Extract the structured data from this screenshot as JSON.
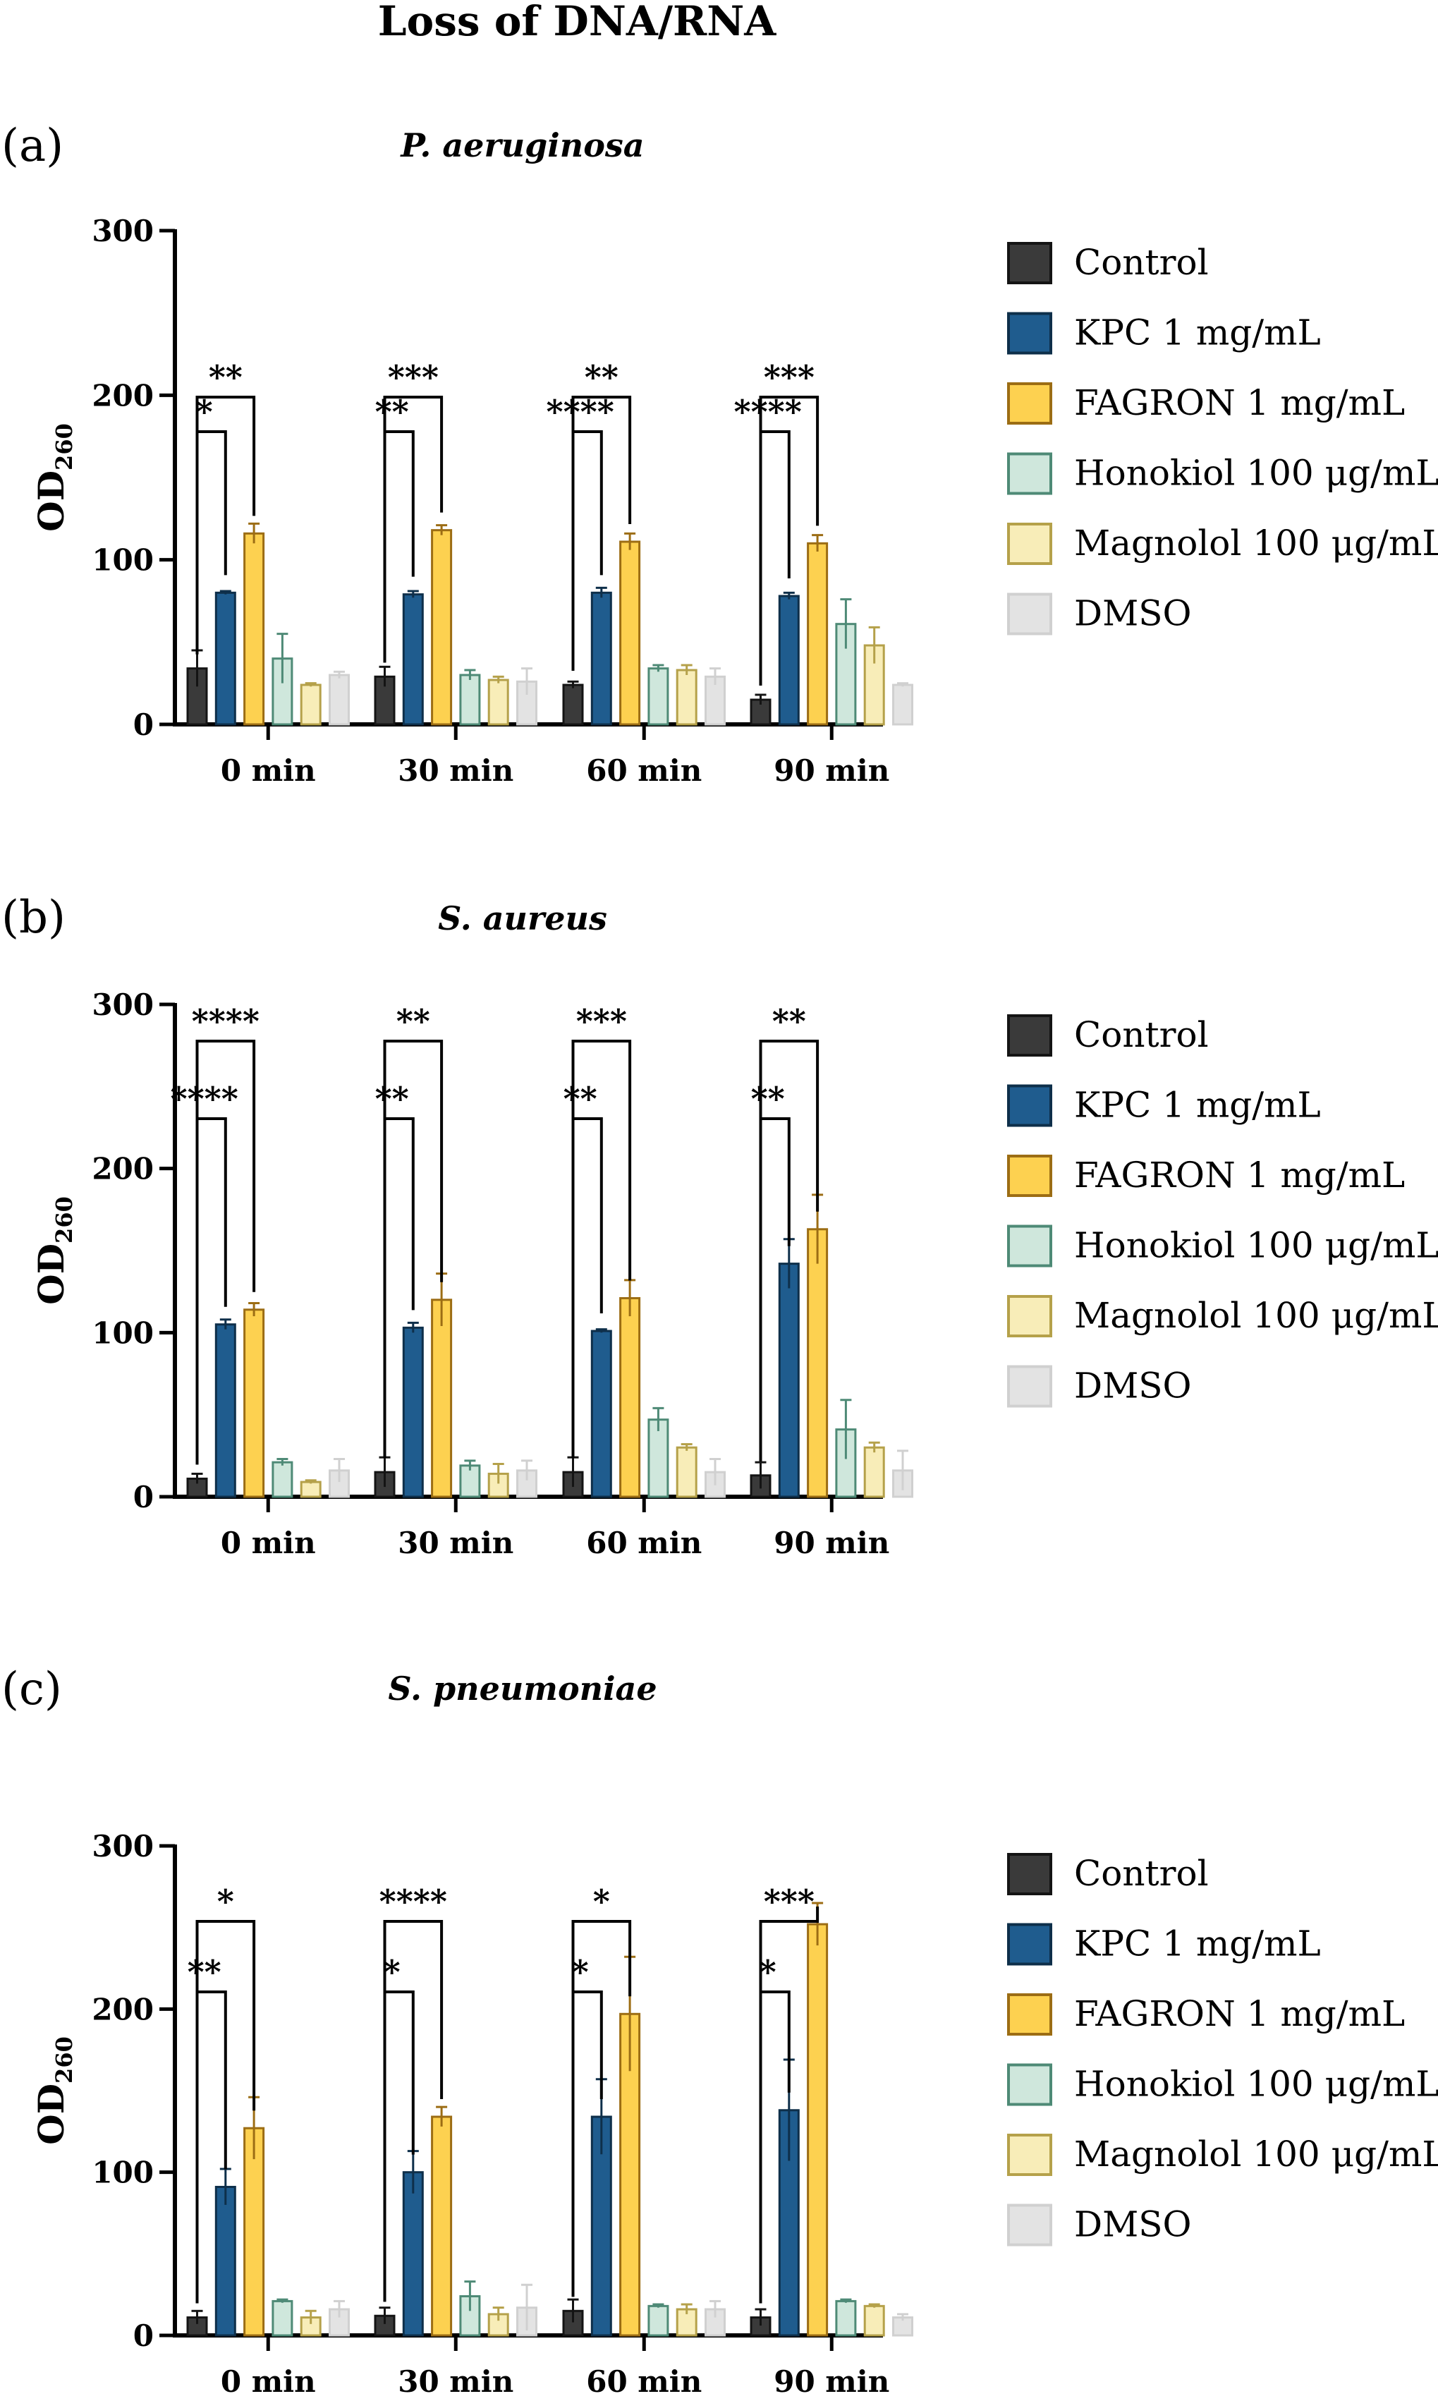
{
  "figure_title": "Loss of DNA/RNA",
  "legend": [
    {
      "label": "Control",
      "fill": "#3a3a3a",
      "stroke": "#141414"
    },
    {
      "label": "KPC 1 mg/mL",
      "fill": "#1f5c8e",
      "stroke": "#0e2f4a"
    },
    {
      "label": "FAGRON 1 mg/mL",
      "fill": "#fdd150",
      "stroke": "#9c6d14"
    },
    {
      "label": "Honokiol 100 μg/mL",
      "fill": "#cfe7dc",
      "stroke": "#4e8a76"
    },
    {
      "label": "Magnolol 100 μg/mL",
      "fill": "#f8edb8",
      "stroke": "#b5a14a"
    },
    {
      "label": "DMSO",
      "fill": "#e3e3e3",
      "stroke": "#d0d0d0"
    }
  ],
  "chart_data": [
    {
      "type": "bar",
      "panel_label": "(a)",
      "title": "P. aeruginosa",
      "ylabel": "OD",
      "ylabel_sub": "260",
      "ylim": [
        0,
        300
      ],
      "yticks": [
        0,
        100,
        200,
        300
      ],
      "categories": [
        "0 min",
        "30 min",
        "60 min",
        "90 min"
      ],
      "series": [
        {
          "name": "Control",
          "values": [
            34,
            29,
            24,
            15
          ],
          "errors": [
            11,
            6,
            2,
            3
          ]
        },
        {
          "name": "KPC 1 mg/mL",
          "values": [
            80,
            79,
            80,
            78
          ],
          "errors": [
            1,
            2,
            3,
            2
          ]
        },
        {
          "name": "FAGRON 1 mg/mL",
          "values": [
            116,
            118,
            111,
            110
          ],
          "errors": [
            6,
            3,
            5,
            5
          ]
        },
        {
          "name": "Honokiol 100 μg/mL",
          "values": [
            40,
            30,
            34,
            61
          ],
          "errors": [
            15,
            3,
            2,
            15
          ]
        },
        {
          "name": "Magnolol 100 μg/mL",
          "values": [
            24,
            27,
            33,
            48
          ],
          "errors": [
            1,
            2,
            3,
            11
          ]
        },
        {
          "name": "DMSO",
          "values": [
            30,
            26,
            29,
            24
          ],
          "errors": [
            2,
            8,
            5,
            1
          ]
        }
      ],
      "significance_near": [
        "*",
        "**",
        "****",
        "****"
      ],
      "significance_far": [
        "**",
        "***",
        "**",
        "***"
      ]
    },
    {
      "type": "bar",
      "panel_label": "(b)",
      "title": "S. aureus",
      "ylabel": "OD",
      "ylabel_sub": "260",
      "ylim": [
        0,
        300
      ],
      "yticks": [
        0,
        100,
        200,
        300
      ],
      "categories": [
        "0 min",
        "30 min",
        "60 min",
        "90 min"
      ],
      "series": [
        {
          "name": "Control",
          "values": [
            11,
            15,
            15,
            13
          ],
          "errors": [
            3,
            9,
            9,
            8
          ]
        },
        {
          "name": "KPC 1 mg/mL",
          "values": [
            105,
            103,
            101,
            142
          ],
          "errors": [
            3,
            3,
            1,
            15
          ]
        },
        {
          "name": "FAGRON 1 mg/mL",
          "values": [
            114,
            120,
            121,
            163
          ],
          "errors": [
            4,
            16,
            11,
            21
          ]
        },
        {
          "name": "Honokiol 100 μg/mL",
          "values": [
            21,
            19,
            47,
            41
          ],
          "errors": [
            2,
            3,
            7,
            18
          ]
        },
        {
          "name": "Magnolol 100 μg/mL",
          "values": [
            9,
            14,
            30,
            30
          ],
          "errors": [
            1,
            6,
            2,
            3
          ]
        },
        {
          "name": "DMSO",
          "values": [
            16,
            16,
            15,
            16
          ],
          "errors": [
            7,
            6,
            8,
            12
          ]
        }
      ],
      "significance_near": [
        "****",
        "**",
        "**",
        "**"
      ],
      "significance_far": [
        "****",
        "**",
        "***",
        "**"
      ]
    },
    {
      "type": "bar",
      "panel_label": "(c)",
      "title": "S. pneumoniae",
      "ylabel": "OD",
      "ylabel_sub": "260",
      "ylim": [
        0,
        300
      ],
      "yticks": [
        0,
        100,
        200,
        300
      ],
      "categories": [
        "0 min",
        "30 min",
        "60 min",
        "90 min"
      ],
      "series": [
        {
          "name": "Control",
          "values": [
            11,
            12,
            15,
            11
          ],
          "errors": [
            4,
            5,
            7,
            5
          ]
        },
        {
          "name": "KPC 1 mg/mL",
          "values": [
            91,
            100,
            134,
            138
          ],
          "errors": [
            11,
            13,
            23,
            31
          ]
        },
        {
          "name": "FAGRON 1 mg/mL",
          "values": [
            127,
            134,
            197,
            252
          ],
          "errors": [
            19,
            6,
            35,
            13
          ]
        },
        {
          "name": "Honokiol 100 μg/mL",
          "values": [
            21,
            24,
            18,
            21
          ],
          "errors": [
            1,
            9,
            1,
            1
          ]
        },
        {
          "name": "Magnolol 100 μg/mL",
          "values": [
            11,
            13,
            16,
            18
          ],
          "errors": [
            4,
            4,
            3,
            1
          ]
        },
        {
          "name": "DMSO",
          "values": [
            16,
            17,
            16,
            11
          ],
          "errors": [
            5,
            14,
            5,
            2
          ]
        }
      ],
      "significance_near": [
        "**",
        "*",
        "*",
        "*"
      ],
      "significance_far": [
        "*",
        "****",
        "*",
        "***"
      ]
    }
  ]
}
